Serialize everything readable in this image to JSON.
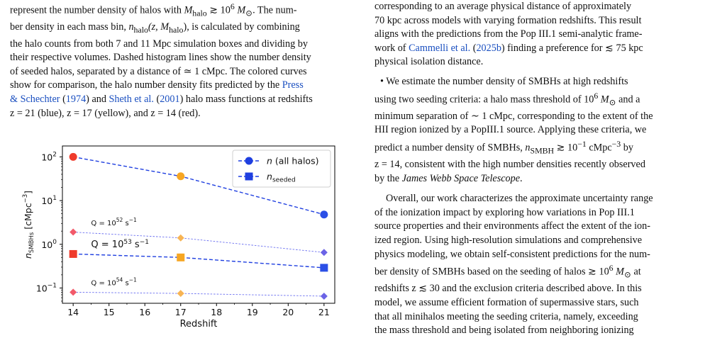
{
  "left_caption": {
    "l1a": "represent the number density of halos with ",
    "l1b": "M",
    "l1c": "halo",
    "l1d": " ≳ 10",
    "l1e": "6",
    "l1f": " M",
    "l1g": "⊙",
    "l1h": ". The num-",
    "l2a": "ber density in each mass bin, ",
    "l2b": "n",
    "l2c": "halo",
    "l2d": "(z, M",
    "l2e": "halo",
    "l2f": "), is calculated by combining",
    "l3": "the halo counts from both 7 and 11 Mpc simulation boxes and dividing by",
    "l4": "their respective volumes. Dashed histogram lines show the number density",
    "l5": "of seeded halos, separated by a distance of ≃ 1 cMpc. The colored curves",
    "l6a": "show for comparison, the halo number density fits predicted by the ",
    "l6b": "Press",
    "l7a": "& Schechter",
    "l7b": " (",
    "l7c": "1974",
    "l7d": ") and ",
    "l7e": "Sheth et al.",
    "l7f": " (",
    "l7g": "2001",
    "l7h": ") halo mass functions at redshifts",
    "l8": "z = 21 (blue), z = 17 (yellow), and z = 14 (red)."
  },
  "right_text": {
    "p1_l1": "corresponding to an average physical distance of approximately",
    "p1_l2": "70 kpc across models with varying formation redshifts. This result",
    "p1_l3": "aligns with the predictions from the Pop III.1 semi-analytic frame-",
    "p1_l4a": "work of ",
    "p1_l4b": "Cammelli et al.",
    "p1_l4c": " (",
    "p1_l4d": "2025b",
    "p1_l4e": ") finding a preference for ≲ 75 kpc",
    "p1_l5": "physical isolation distance.",
    "p2_l1": "• We estimate the number density of SMBHs at high redshifts",
    "p2_l2a": "using two seeding criteria: a halo mass threshold of 10",
    "p2_l2b": "6",
    "p2_l2c": " M",
    "p2_l2d": "⊙",
    "p2_l2e": " and a",
    "p2_l3": "minimum separation of ∼ 1 cMpc, corresponding to the extent of the",
    "p2_l4": "HII region ionized by a PopIII.1 source. Applying these criteria, we",
    "p2_l5a": "predict a number density of SMBHs, ",
    "p2_l5b": "n",
    "p2_l5c": "SMBH",
    "p2_l5d": " ≳ 10",
    "p2_l5e": "−1",
    "p2_l5f": " cMpc",
    "p2_l5g": "−3",
    "p2_l5h": " by",
    "p2_l6": "z = 14, consistent with the high number densities recently observed",
    "p2_l7a": "by the ",
    "p2_l7b": "James Webb Space Telescope",
    "p2_l7c": ".",
    "p3_l1": "Overall, our work characterizes the approximate uncertainty range",
    "p3_l2": "of the ionization impact by exploring how variations in Pop III.1",
    "p3_l3": "source properties and their environments affect the extent of the ion-",
    "p3_l4": "ized region. Using high-resolution simulations and comprehensive",
    "p3_l5": "physics modeling, we obtain self-consistent predictions for the num-",
    "p3_l6a": "ber density of SMBHs based on the seeding of halos ≳ 10",
    "p3_l6b": "6",
    "p3_l6c": " M",
    "p3_l6d": "⊙",
    "p3_l6e": " at",
    "p3_l7": "redshifts z ≲ 30 and the exclusion criteria described above. In this",
    "p3_l8": "model, we assume efficient formation of supermassive stars, such",
    "p3_l9": "that all minihalos meeting the seeding criteria, namely, exceeding",
    "p3_l10": "the mass threshold and being isolated from neighboring ionizing"
  },
  "chart_data": {
    "type": "line",
    "xlabel": "Redshift",
    "ylabel": "n_SMBHs [cMpc^-3]",
    "ylabel_parts": {
      "base": "n",
      "sub": "SMBHs",
      "unit": " [cMpc",
      "exp": "−3",
      "close": "]"
    },
    "xlim": [
      13.7,
      21.3
    ],
    "ylim_log10": [
      -1.35,
      2.25
    ],
    "y_scale": "log",
    "xticks": [
      14,
      15,
      16,
      17,
      18,
      19,
      20,
      21
    ],
    "yticks": [
      {
        "base": "10",
        "exp": "−1",
        "log": -1
      },
      {
        "base": "10",
        "exp": "0",
        "log": 0
      },
      {
        "base": "10",
        "exp": "1",
        "log": 1
      },
      {
        "base": "10",
        "exp": "2",
        "log": 2
      }
    ],
    "legend_position": "top-right",
    "legend": [
      {
        "label": "n",
        "suffix": " (all halos)",
        "marker": "circle"
      },
      {
        "label": "n",
        "sub": "seeded",
        "marker": "square"
      }
    ],
    "point_colors": {
      "14": "#ef3b2c",
      "17": "#f6a623",
      "21": "#2b4fe6"
    },
    "diamond_colors": {
      "14": "#f25a6a",
      "17": "#f7b454",
      "21": "#6b63e6"
    },
    "series": [
      {
        "name": "n (all halos)",
        "marker": "circle",
        "color": "#1f3fe0",
        "x": [
          14,
          17,
          21
        ],
        "y": [
          100,
          36,
          4.8
        ]
      },
      {
        "name": "n_seeded",
        "marker": "square",
        "color": "#1f3fe0",
        "x": [
          14,
          17,
          21
        ],
        "y": [
          0.6,
          0.5,
          0.29
        ]
      },
      {
        "name": "Q = 10^52 s^-1",
        "marker": "diamond",
        "color": "#6a6ff0",
        "x": [
          14,
          17,
          21
        ],
        "y": [
          1.9,
          1.4,
          0.65
        ]
      },
      {
        "name": "Q = 10^54 s^-1",
        "marker": "diamond",
        "color": "#6a6ff0",
        "x": [
          14,
          17,
          21
        ],
        "y": [
          0.08,
          0.075,
          0.065
        ]
      }
    ],
    "annotations": [
      {
        "base": "Q = 10",
        "exp": "52",
        "unit": " s",
        "unitexp": "−1",
        "x": 14.5,
        "y": 2.7
      },
      {
        "base": "Q = 10",
        "exp": "53",
        "unit": " s",
        "unitexp": "−1",
        "x": 14.5,
        "y": 0.86
      },
      {
        "base": "Q = 10",
        "exp": "54",
        "unit": " s",
        "unitexp": "−1",
        "x": 14.5,
        "y": 0.115
      }
    ]
  }
}
